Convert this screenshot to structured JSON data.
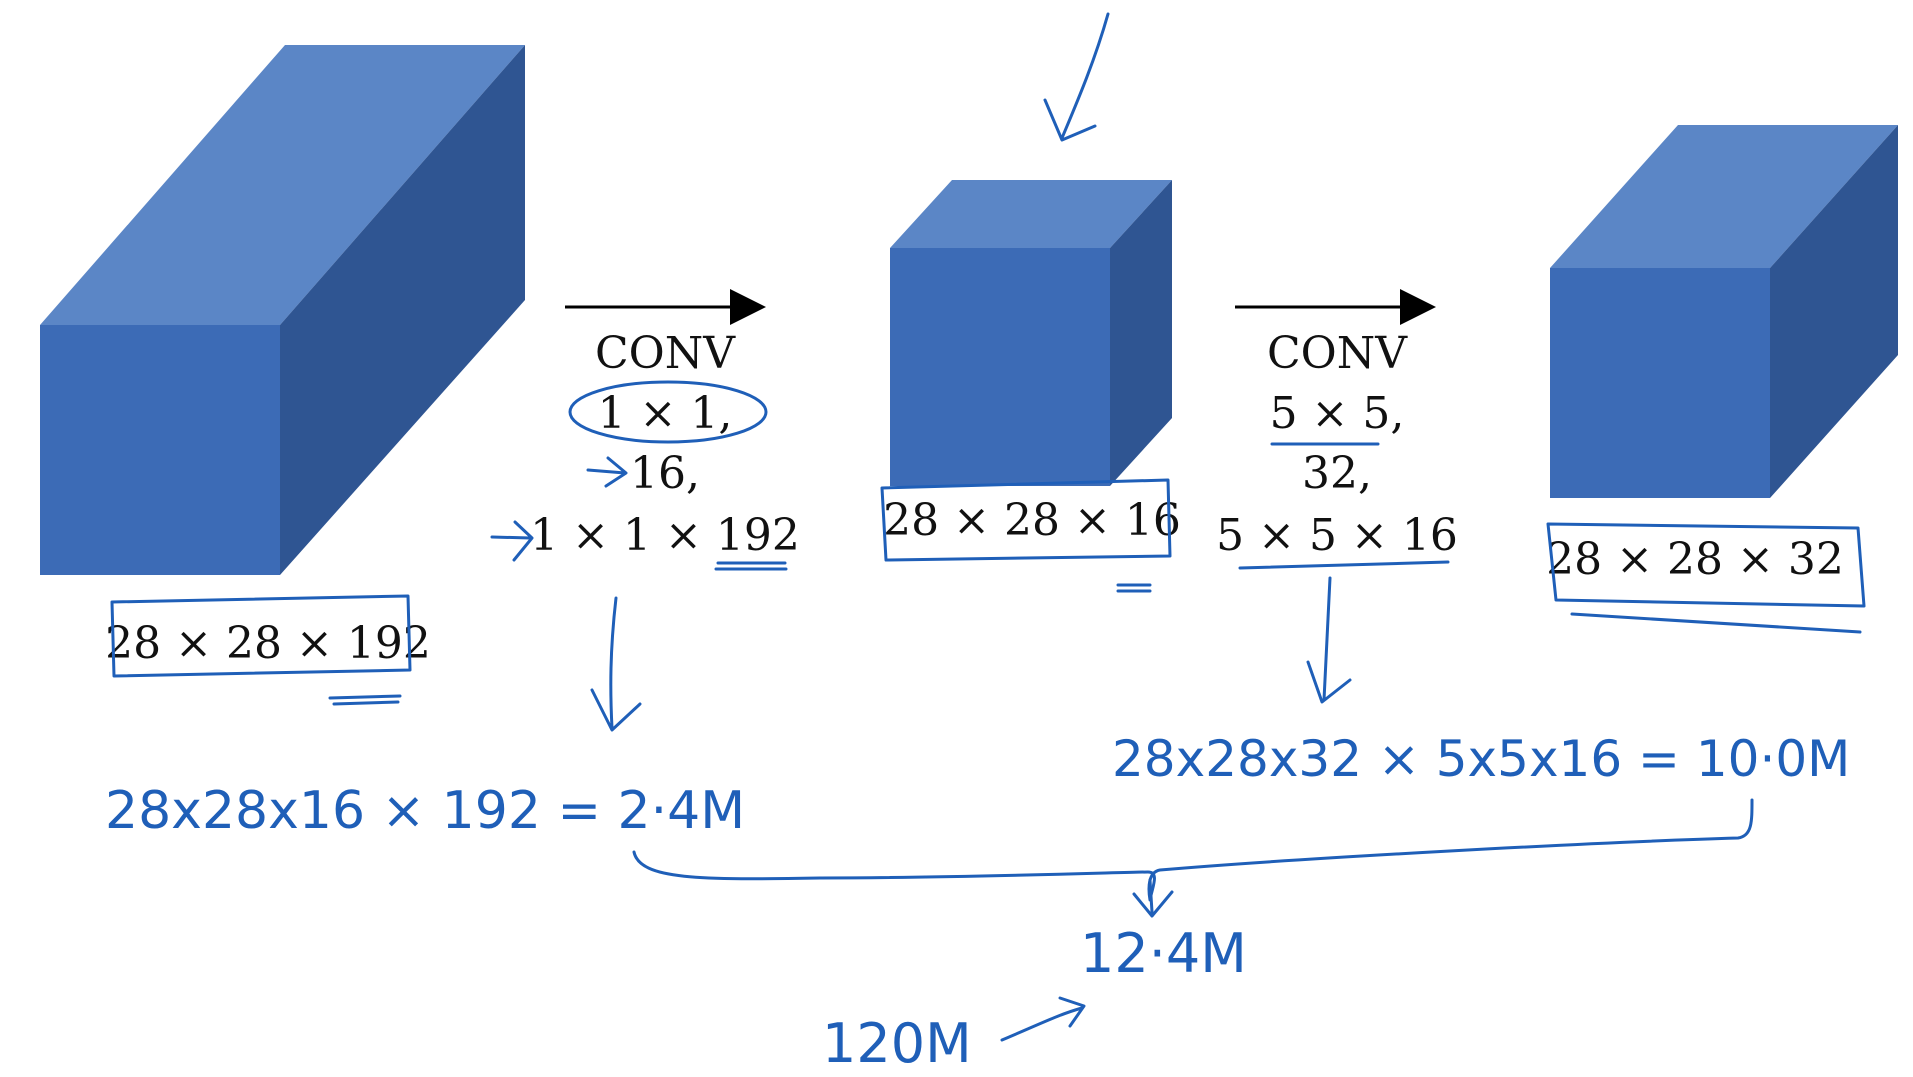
{
  "colors": {
    "cube_front": "#3c6bb6",
    "cube_top": "#5b86c6",
    "cube_side": "#2f5592",
    "ink": "#1f5fb8",
    "text": "#111111"
  },
  "volumes": {
    "input": {
      "label": "28 × 28 × 192"
    },
    "middle": {
      "label": "28 × 28 × 16"
    },
    "output": {
      "label": "28 × 28 × 32"
    }
  },
  "conv1": {
    "title": "CONV",
    "kernel": "1 × 1,",
    "filters": "16,",
    "filter_shape": "1 × 1 × 192"
  },
  "conv2": {
    "title": "CONV",
    "kernel": "5 × 5,",
    "filters": "32,",
    "filter_shape": "5 × 5 × 16"
  },
  "annotations": {
    "cost1": "28x28x16 × 192 = 2·4M",
    "cost2": "28x28x32 × 5x5x16 = 10·0M",
    "total": "12·4M",
    "compare": "120M"
  }
}
